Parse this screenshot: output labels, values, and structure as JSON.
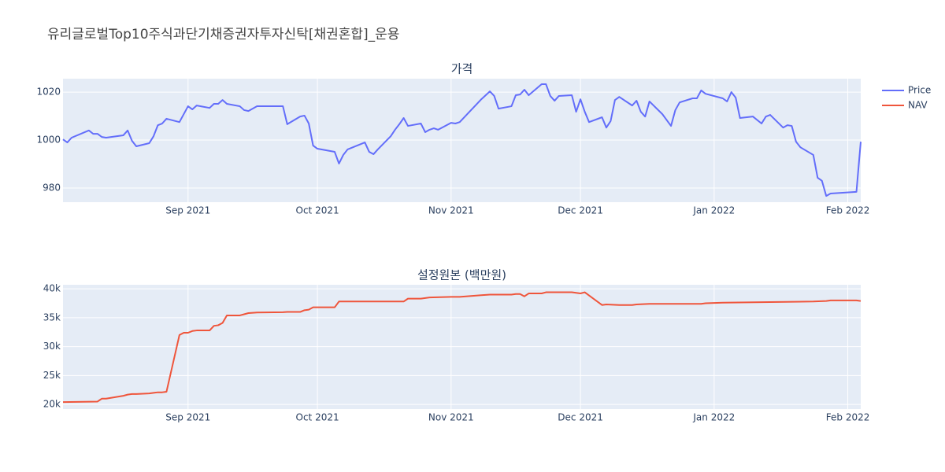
{
  "title": "유리글로벌Top10주식과단기채증권자투자신탁[채권혼합]_운용",
  "chart_data": [
    {
      "type": "line",
      "title": "가격",
      "x": [
        "2021-08-03",
        "2021-08-04",
        "2021-08-05",
        "2021-08-09",
        "2021-08-10",
        "2021-08-11",
        "2021-08-12",
        "2021-08-13",
        "2021-08-17",
        "2021-08-18",
        "2021-08-19",
        "2021-08-20",
        "2021-08-23",
        "2021-08-24",
        "2021-08-25",
        "2021-08-26",
        "2021-08-27",
        "2021-08-30",
        "2021-09-01",
        "2021-09-02",
        "2021-09-03",
        "2021-09-06",
        "2021-09-07",
        "2021-09-08",
        "2021-09-09",
        "2021-09-10",
        "2021-09-13",
        "2021-09-14",
        "2021-09-15",
        "2021-09-17",
        "2021-09-23",
        "2021-09-24",
        "2021-09-27",
        "2021-09-28",
        "2021-09-29",
        "2021-09-30",
        "2021-10-01",
        "2021-10-05",
        "2021-10-06",
        "2021-10-07",
        "2021-10-08",
        "2021-10-12",
        "2021-10-13",
        "2021-10-14",
        "2021-10-15",
        "2021-10-18",
        "2021-10-19",
        "2021-10-20",
        "2021-10-21",
        "2021-10-22",
        "2021-10-25",
        "2021-10-26",
        "2021-10-27",
        "2021-10-28",
        "2021-10-29",
        "2021-11-01",
        "2021-11-02",
        "2021-11-03",
        "2021-11-08",
        "2021-11-10",
        "2021-11-11",
        "2021-11-12",
        "2021-11-15",
        "2021-11-16",
        "2021-11-17",
        "2021-11-18",
        "2021-11-19",
        "2021-11-22",
        "2021-11-23",
        "2021-11-24",
        "2021-11-25",
        "2021-11-26",
        "2021-11-29",
        "2021-11-30",
        "2021-12-01",
        "2021-12-02",
        "2021-12-03",
        "2021-12-06",
        "2021-12-07",
        "2021-12-08",
        "2021-12-09",
        "2021-12-10",
        "2021-12-13",
        "2021-12-14",
        "2021-12-15",
        "2021-12-16",
        "2021-12-17",
        "2021-12-20",
        "2021-12-22",
        "2021-12-23",
        "2021-12-24",
        "2021-12-27",
        "2021-12-28",
        "2021-12-29",
        "2021-12-30",
        "2022-01-03",
        "2022-01-04",
        "2022-01-05",
        "2022-01-06",
        "2022-01-07",
        "2022-01-10",
        "2022-01-12",
        "2022-01-13",
        "2022-01-14",
        "2022-01-17",
        "2022-01-18",
        "2022-01-19",
        "2022-01-20",
        "2022-01-21",
        "2022-01-24",
        "2022-01-25",
        "2022-01-26",
        "2022-01-27",
        "2022-01-28",
        "2022-02-03",
        "2022-02-04"
      ],
      "series": [
        {
          "name": "Price",
          "color": "#636efa",
          "values": [
            1000.3,
            999,
            1001,
            1004,
            1002.6,
            1002.6,
            1001.3,
            1001,
            1002,
            1004,
            999.7,
            997.4,
            998.7,
            1001.6,
            1006.2,
            1006.9,
            1008.9,
            1007.5,
            1014.1,
            1012.8,
            1014.4,
            1013.4,
            1015.1,
            1015.1,
            1016.7,
            1015.1,
            1014.1,
            1012.5,
            1012.1,
            1014.1,
            1014.1,
            1006.6,
            1009.8,
            1010.2,
            1006.9,
            997.7,
            996.4,
            995.1,
            990.2,
            993.8,
            996.1,
            999,
            995.1,
            994.1,
            996.1,
            1001.6,
            1004.3,
            1006.6,
            1009.2,
            1005.9,
            1006.9,
            1003.3,
            1004.3,
            1004.9,
            1004.3,
            1007.2,
            1006.9,
            1007.5,
            1017,
            1020.3,
            1018.4,
            1013.1,
            1014.1,
            1018.7,
            1019,
            1021,
            1018.7,
            1023.3,
            1023.3,
            1018.4,
            1016.4,
            1018.4,
            1018.7,
            1011.8,
            1017,
            1011.8,
            1007.5,
            1009.5,
            1005.2,
            1007.9,
            1016.7,
            1018,
            1014.4,
            1016.4,
            1011.8,
            1009.8,
            1016.1,
            1010.8,
            1005.9,
            1012.5,
            1015.7,
            1017.4,
            1017.4,
            1020.7,
            1019.3,
            1017.4,
            1016.1,
            1020,
            1017.7,
            1009.2,
            1009.8,
            1006.9,
            1009.8,
            1010.5,
            1005.2,
            1006.2,
            1005.9,
            999.3,
            997,
            993.8,
            984.3,
            983,
            976.7,
            977.7,
            978.4,
            999.3
          ]
        }
      ],
      "xlim": [
        "2021-08-03",
        "2022-02-04"
      ],
      "xticks": [
        {
          "value": "2021-09-01",
          "label": "Sep 2021"
        },
        {
          "value": "2021-10-01",
          "label": "Oct 2021"
        },
        {
          "value": "2021-11-01",
          "label": "Nov 2021"
        },
        {
          "value": "2021-12-01",
          "label": "Dec 2021"
        },
        {
          "value": "2022-01-01",
          "label": "Jan 2022"
        },
        {
          "value": "2022-02-01",
          "label": "Feb 2022"
        }
      ],
      "ylim": [
        974.1,
        1025.6
      ],
      "yticks": [
        980,
        1000,
        1020
      ],
      "grid": true
    },
    {
      "type": "line",
      "title": "설정원본 (백만원)",
      "x": [
        "2021-08-03",
        "2021-08-11",
        "2021-08-12",
        "2021-08-13",
        "2021-08-17",
        "2021-08-18",
        "2021-08-19",
        "2021-08-20",
        "2021-08-23",
        "2021-08-24",
        "2021-08-25",
        "2021-08-26",
        "2021-08-27",
        "2021-08-30",
        "2021-08-31",
        "2021-09-01",
        "2021-09-02",
        "2021-09-03",
        "2021-09-06",
        "2021-09-07",
        "2021-09-08",
        "2021-09-09",
        "2021-09-10",
        "2021-09-13",
        "2021-09-14",
        "2021-09-15",
        "2021-09-17",
        "2021-09-23",
        "2021-09-24",
        "2021-09-27",
        "2021-09-28",
        "2021-09-29",
        "2021-09-30",
        "2021-10-01",
        "2021-10-05",
        "2021-10-06",
        "2021-10-21",
        "2021-10-22",
        "2021-10-25",
        "2021-10-26",
        "2021-10-27",
        "2021-11-01",
        "2021-11-03",
        "2021-11-08",
        "2021-11-10",
        "2021-11-15",
        "2021-11-16",
        "2021-11-17",
        "2021-11-18",
        "2021-11-19",
        "2021-11-22",
        "2021-11-23",
        "2021-11-29",
        "2021-11-30",
        "2021-12-01",
        "2021-12-02",
        "2021-12-06",
        "2021-12-07",
        "2021-12-10",
        "2021-12-13",
        "2021-12-14",
        "2021-12-17",
        "2021-12-29",
        "2021-12-30",
        "2022-01-03",
        "2022-01-24",
        "2022-01-27",
        "2022-01-28",
        "2022-02-03",
        "2022-02-04"
      ],
      "series": [
        {
          "name": "NAV",
          "color": "#ef553b",
          "values": [
            20400,
            20500,
            21000,
            21000,
            21500,
            21700,
            21800,
            21800,
            21900,
            22000,
            22100,
            22100,
            22200,
            32000,
            32400,
            32400,
            32700,
            32800,
            32800,
            33600,
            33700,
            34100,
            35400,
            35400,
            35600,
            35800,
            35900,
            35950,
            36000,
            36000,
            36300,
            36400,
            36800,
            36800,
            36800,
            37800,
            37800,
            38300,
            38300,
            38400,
            38500,
            38600,
            38600,
            38900,
            39000,
            39000,
            39100,
            39100,
            38700,
            39200,
            39200,
            39400,
            39400,
            39300,
            39200,
            39400,
            37200,
            37300,
            37200,
            37200,
            37300,
            37400,
            37400,
            37500,
            37600,
            37800,
            37900,
            38000,
            38000,
            37900
          ]
        }
      ],
      "xlim": [
        "2021-08-03",
        "2022-02-04"
      ],
      "xticks": [
        {
          "value": "2021-09-01",
          "label": "Sep 2021"
        },
        {
          "value": "2021-10-01",
          "label": "Oct 2021"
        },
        {
          "value": "2021-11-01",
          "label": "Nov 2021"
        },
        {
          "value": "2021-12-01",
          "label": "Dec 2021"
        },
        {
          "value": "2022-01-01",
          "label": "Jan 2022"
        },
        {
          "value": "2022-02-01",
          "label": "Feb 2022"
        }
      ],
      "ylim": [
        19200,
        40700
      ],
      "yticks": [
        {
          "value": 20000,
          "label": "20k"
        },
        {
          "value": 25000,
          "label": "25k"
        },
        {
          "value": 30000,
          "label": "30k"
        },
        {
          "value": 35000,
          "label": "35k"
        },
        {
          "value": 40000,
          "label": "40k"
        }
      ],
      "grid": true
    }
  ]
}
